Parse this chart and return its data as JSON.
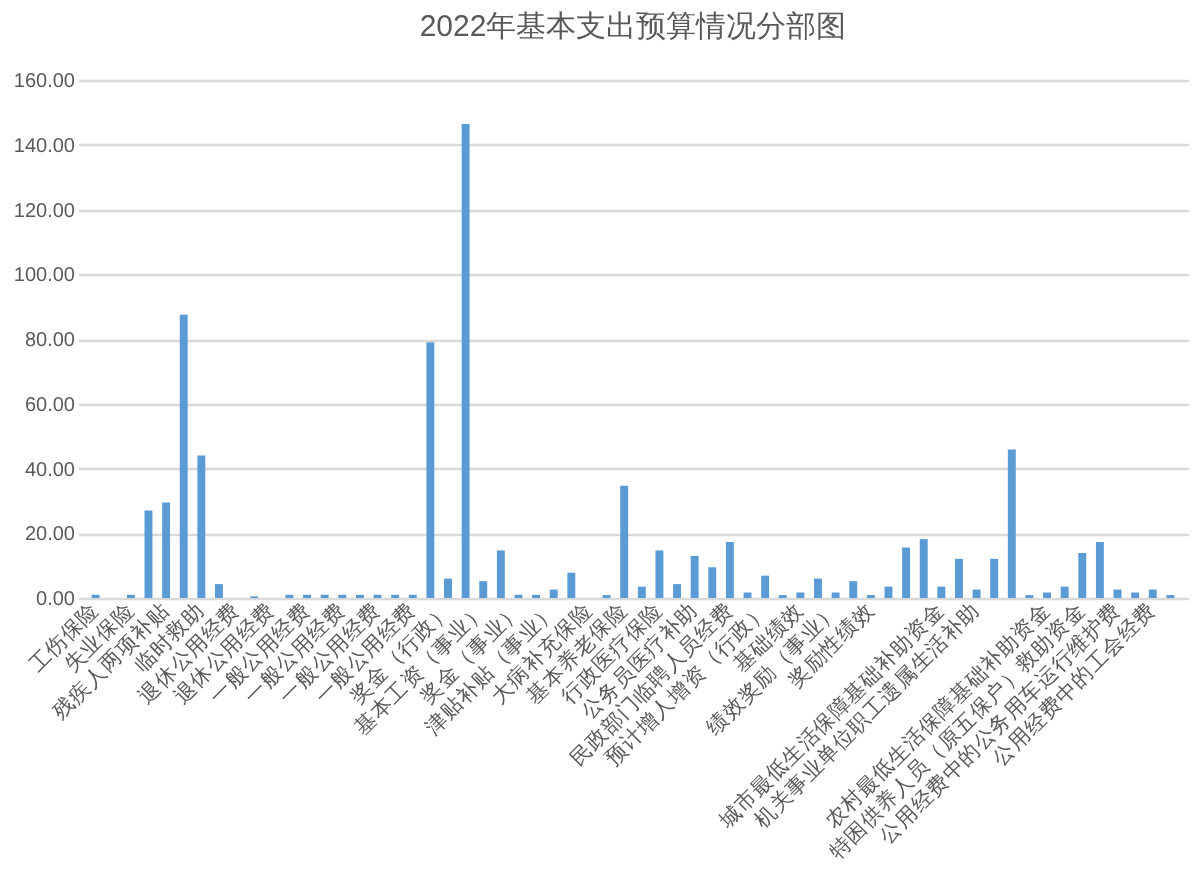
{
  "chart_data": {
    "type": "bar",
    "title": "2022年基本支出预算情况分部图",
    "categories": [
      "工伤保险",
      null,
      "失业保险",
      null,
      "残疾人两项补贴",
      null,
      "临时救助",
      null,
      "退休公用经费",
      null,
      "退休公用经费",
      null,
      "一般公用经费",
      null,
      "一般公用经费",
      null,
      "一般公用经费",
      null,
      "一般公用经费",
      null,
      "奖金（行政）",
      null,
      "基本工资（事业）",
      null,
      "奖金（事业）",
      null,
      "津贴补贴（事业）",
      null,
      "大病补充保险",
      null,
      "基本养老保险",
      null,
      "行政医疗保险",
      null,
      "公务员医疗补助",
      null,
      "民政部门临聘人员经费",
      null,
      "预计增人增资（行政）",
      null,
      "基础绩效",
      null,
      "绩效奖励（事业）",
      null,
      "奖励性绩效",
      null,
      null,
      null,
      "城市最低生活保障基础补助资金",
      null,
      "机关事业单位职工遗属生活补助",
      null,
      null,
      null,
      "农村最低生活保障基础补助资金",
      null,
      "特困供养人员（原五保户）救助资金",
      null,
      "公用经费中的公务用车运行维护费",
      null,
      "公用经费中的工会经费",
      null
    ],
    "values": [
      1,
      0,
      1,
      27,
      29.5,
      87.5,
      44,
      4.3,
      0,
      0.5,
      0,
      1,
      1,
      1,
      1,
      1,
      1,
      1,
      1,
      79,
      6,
      146.4,
      5.2,
      14.7,
      1,
      1,
      2.6,
      7.8,
      0,
      0.9,
      34.7,
      3.5,
      14.7,
      4.3,
      13,
      9.5,
      17.3,
      1.7,
      6.9,
      0.9,
      1.7,
      6,
      1.7,
      5.2,
      0.9,
      3.5,
      15.6,
      18.2,
      3.5,
      12.1,
      2.6,
      12.1,
      45.9,
      0.9,
      1.7,
      3.5,
      13.9,
      17.3,
      2.6,
      1.7,
      2.6,
      0.9
    ],
    "color": "#5b9bd5",
    "ylim": [
      0,
      160
    ],
    "yticks": [
      {
        "value": 0,
        "label": "0.00"
      },
      {
        "value": 20,
        "label": "20.00"
      },
      {
        "value": 40,
        "label": "40.00"
      },
      {
        "value": 60,
        "label": "60.00"
      },
      {
        "value": 80,
        "label": "80.00"
      },
      {
        "value": 100,
        "label": "100.00"
      },
      {
        "value": 120,
        "label": "120.00"
      },
      {
        "value": 140,
        "label": "140.00"
      },
      {
        "value": 160,
        "label": "160.00"
      }
    ],
    "grid": "y"
  }
}
